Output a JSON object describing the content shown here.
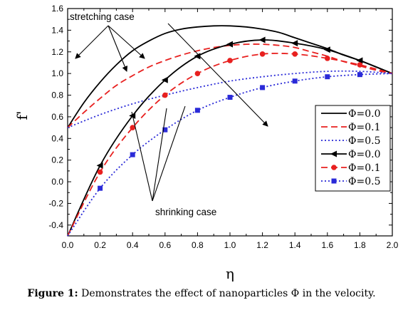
{
  "caption": {
    "label": "Figure 1:",
    "text": "Demonstrates the effect of nanoparticles Φ in the velocity."
  },
  "chart_data": {
    "type": "line",
    "xlabel": "η",
    "ylabel": "f'",
    "xlim": [
      0.0,
      2.0
    ],
    "ylim": [
      -0.5,
      1.6
    ],
    "xticks": [
      "0.0",
      "0.2",
      "0.4",
      "0.6",
      "0.8",
      "1.0",
      "1.2",
      "1.4",
      "1.6",
      "1.8",
      "2.0"
    ],
    "yticks": [
      "-0.4",
      "-0.2",
      "0.0",
      "0.2",
      "0.4",
      "0.6",
      "0.8",
      "1.0",
      "1.2",
      "1.4",
      "1.6"
    ],
    "legend_position": "right",
    "annotations": [
      {
        "text": "stretching case"
      },
      {
        "text": "shrinking case"
      }
    ],
    "series": [
      {
        "name": "Φ=0.0",
        "group": "stretching",
        "color": "#000000",
        "style": "solid",
        "marker": "none",
        "x": [
          0.0,
          0.1,
          0.2,
          0.3,
          0.4,
          0.5,
          0.6,
          0.7,
          0.8,
          0.9,
          1.0,
          1.1,
          1.2,
          1.3,
          1.4,
          1.5,
          1.6,
          1.7,
          1.8,
          1.9,
          2.0
        ],
        "y": [
          0.5,
          0.73,
          0.92,
          1.08,
          1.21,
          1.3,
          1.37,
          1.41,
          1.43,
          1.44,
          1.44,
          1.43,
          1.41,
          1.38,
          1.33,
          1.28,
          1.23,
          1.17,
          1.12,
          1.06,
          1.0
        ]
      },
      {
        "name": "Φ=0.1",
        "group": "stretching",
        "color": "#e8201f",
        "style": "dashed",
        "marker": "none",
        "x": [
          0.0,
          0.1,
          0.2,
          0.3,
          0.4,
          0.5,
          0.6,
          0.7,
          0.8,
          0.9,
          1.0,
          1.1,
          1.2,
          1.3,
          1.4,
          1.5,
          1.6,
          1.7,
          1.8,
          1.9,
          2.0
        ],
        "y": [
          0.5,
          0.64,
          0.77,
          0.89,
          0.98,
          1.06,
          1.12,
          1.17,
          1.21,
          1.24,
          1.26,
          1.27,
          1.27,
          1.26,
          1.24,
          1.2,
          1.16,
          1.11,
          1.07,
          1.03,
          1.0
        ]
      },
      {
        "name": "Φ=0.5",
        "group": "stretching",
        "color": "#2a2ad8",
        "style": "dotted",
        "marker": "none",
        "x": [
          0.0,
          0.2,
          0.4,
          0.6,
          0.8,
          1.0,
          1.2,
          1.4,
          1.6,
          1.8,
          2.0
        ],
        "y": [
          0.5,
          0.62,
          0.72,
          0.8,
          0.87,
          0.93,
          0.97,
          1.0,
          1.02,
          1.02,
          1.0
        ]
      },
      {
        "name": "Φ=0.0",
        "group": "shrinking",
        "color": "#000000",
        "style": "solid",
        "marker": "triangle-left",
        "x": [
          0.0,
          0.2,
          0.4,
          0.6,
          0.8,
          1.0,
          1.2,
          1.4,
          1.6,
          1.8,
          2.0
        ],
        "y": [
          -0.5,
          0.15,
          0.61,
          0.94,
          1.16,
          1.27,
          1.31,
          1.28,
          1.22,
          1.12,
          1.0
        ]
      },
      {
        "name": "Φ=0.1",
        "group": "shrinking",
        "color": "#e8201f",
        "style": "dashed",
        "marker": "circle",
        "x": [
          0.0,
          0.2,
          0.4,
          0.6,
          0.8,
          1.0,
          1.2,
          1.4,
          1.6,
          1.8,
          2.0
        ],
        "y": [
          -0.5,
          0.09,
          0.5,
          0.8,
          1.0,
          1.12,
          1.18,
          1.18,
          1.14,
          1.08,
          1.0
        ]
      },
      {
        "name": "Φ=0.5",
        "group": "shrinking",
        "color": "#2a2ad8",
        "style": "dotted",
        "marker": "square",
        "x": [
          0.0,
          0.2,
          0.4,
          0.6,
          0.8,
          1.0,
          1.2,
          1.4,
          1.6,
          1.8,
          2.0
        ],
        "y": [
          -0.5,
          -0.06,
          0.25,
          0.48,
          0.66,
          0.78,
          0.87,
          0.93,
          0.97,
          0.99,
          1.0
        ]
      }
    ]
  }
}
